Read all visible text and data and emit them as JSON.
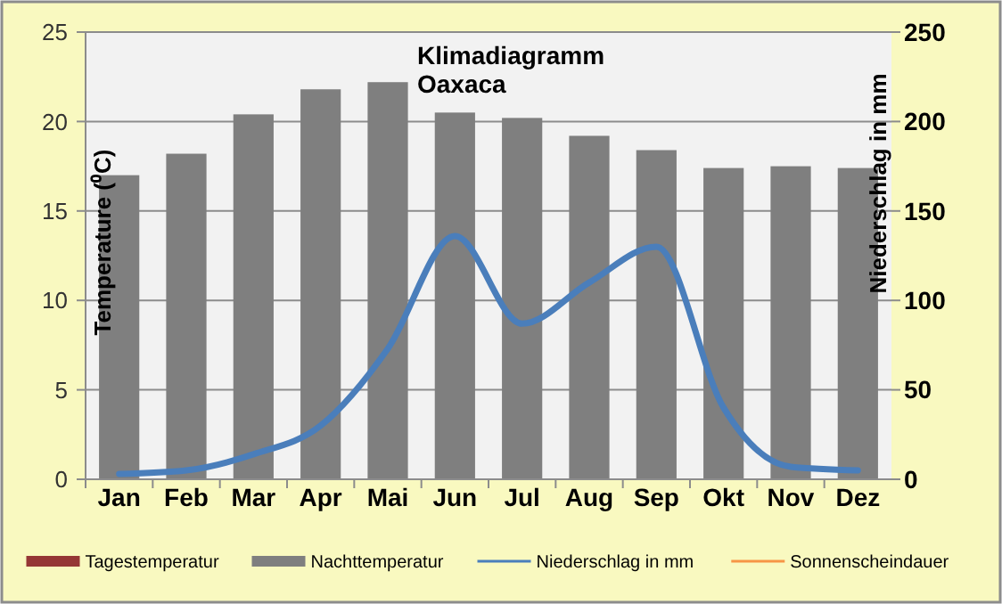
{
  "chart_data": {
    "type": "bar",
    "title": "Klimadiagramm Oaxaca",
    "ylabel": "Temperature (⁰C)",
    "y2label": "Niederschlag in mm",
    "categories": [
      "Jan",
      "Feb",
      "Mar",
      "Apr",
      "Mai",
      "Jun",
      "Jul",
      "Aug",
      "Sep",
      "Okt",
      "Nov",
      "Dez"
    ],
    "series": [
      {
        "name": "Tagestemperatur",
        "color": "#953735",
        "values": [
          null,
          null,
          null,
          null,
          null,
          null,
          null,
          null,
          null,
          null,
          null,
          null
        ]
      },
      {
        "name": "Nachttemperatur",
        "color": "#7f7f7f",
        "values": [
          17,
          18.2,
          20.4,
          21.8,
          22.2,
          20.5,
          20.2,
          19.2,
          18.4,
          17.4,
          17.5,
          17.4
        ]
      },
      {
        "name": "Niederschlag in mm",
        "type": "line",
        "axis": "y2",
        "color": "#4a7ebb",
        "values": [
          3,
          5,
          14,
          30,
          73,
          136,
          87,
          110,
          130,
          40,
          7,
          5
        ]
      },
      {
        "name": "Sonnenscheindauer",
        "type": "line",
        "axis": "y2",
        "color": "#f79646",
        "values": [
          null,
          null,
          null,
          null,
          null,
          null,
          null,
          null,
          null,
          null,
          null,
          null
        ]
      }
    ],
    "ylim": [
      0,
      25
    ],
    "yticks": [
      0,
      5,
      10,
      15,
      20,
      25
    ],
    "y2lim": [
      0,
      250
    ],
    "y2ticks": [
      0,
      50,
      100,
      150,
      200,
      250
    ],
    "grid": "y",
    "legend": "bottom",
    "marker": "none",
    "line_style": "solid"
  }
}
